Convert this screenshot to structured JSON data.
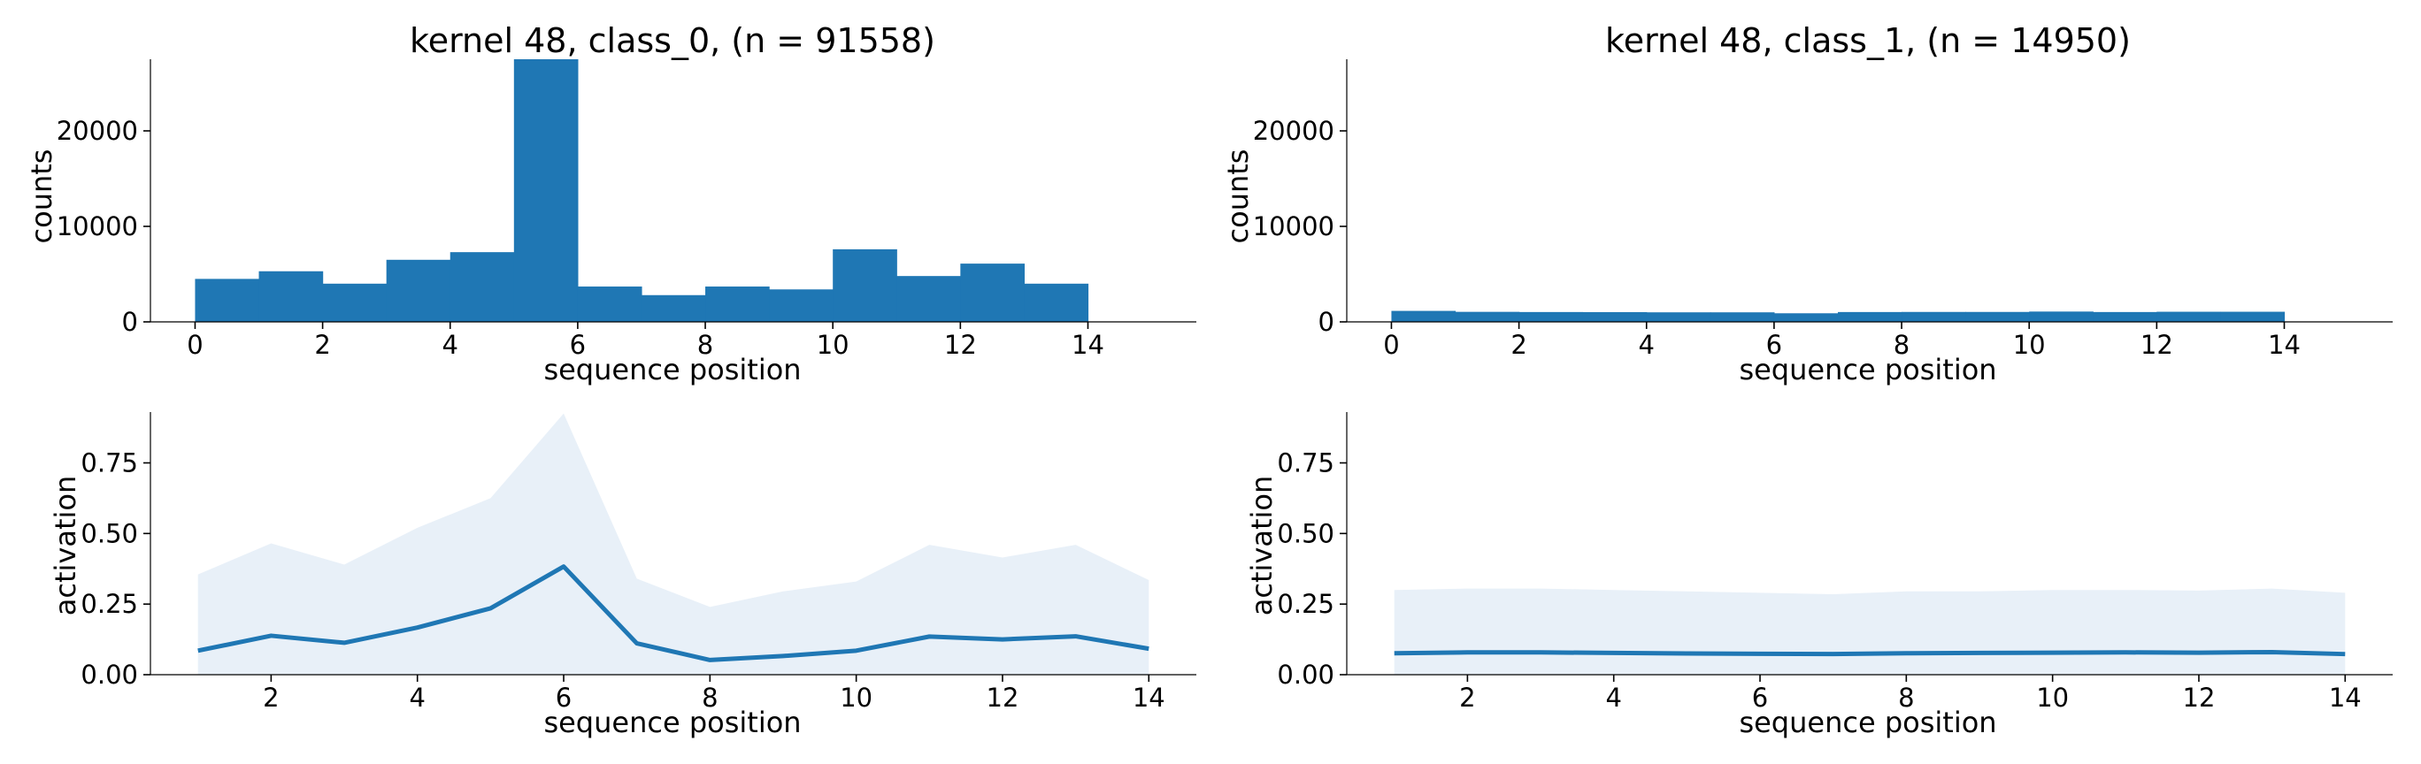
{
  "chart_data": [
    {
      "type": "bar",
      "title": "kernel 48, class_0, (n = 91558)",
      "xlabel": "sequence position",
      "ylabel": "counts",
      "xlim": [
        -0.7,
        15.7
      ],
      "ylim": [
        0,
        27500
      ],
      "xticks": [
        "0",
        "2",
        "4",
        "6",
        "8",
        "10",
        "12",
        "14"
      ],
      "yticks": [
        "0",
        "10000",
        "20000"
      ],
      "bin_edges": [
        0,
        1,
        2,
        3,
        4,
        5,
        6,
        7,
        8,
        9,
        10,
        11,
        12,
        13,
        14
      ],
      "values": [
        4500,
        5300,
        4000,
        6500,
        7300,
        27500,
        3700,
        2800,
        3700,
        3400,
        7600,
        4800,
        6100,
        4000
      ],
      "color": "#1f77b4",
      "grid": false
    },
    {
      "type": "bar",
      "title": "kernel 48, class_1, (n = 14950)",
      "xlabel": "sequence position",
      "ylabel": "counts",
      "xlim": [
        -0.7,
        15.7
      ],
      "ylim": [
        0,
        27500
      ],
      "xticks": [
        "0",
        "2",
        "4",
        "6",
        "8",
        "10",
        "12",
        "14"
      ],
      "yticks": [
        "0",
        "10000",
        "20000"
      ],
      "bin_edges": [
        0,
        1,
        2,
        3,
        4,
        5,
        6,
        7,
        8,
        9,
        10,
        11,
        12,
        13,
        14
      ],
      "values": [
        1150,
        1050,
        1030,
        1020,
        1000,
        1000,
        900,
        1030,
        1040,
        1040,
        1080,
        1030,
        1060,
        1060
      ],
      "color": "#1f77b4",
      "grid": false
    },
    {
      "type": "line",
      "title": "",
      "xlabel": "sequence position",
      "ylabel": "activation",
      "xlim": [
        0.35,
        14.65
      ],
      "ylim": [
        0,
        0.93
      ],
      "xticks": [
        "2",
        "4",
        "6",
        "8",
        "10",
        "12",
        "14"
      ],
      "yticks": [
        "0.00",
        "0.25",
        "0.50",
        "0.75"
      ],
      "x": [
        1,
        2,
        3,
        4,
        5,
        6,
        7,
        8,
        9,
        10,
        11,
        12,
        13,
        14
      ],
      "mean": [
        0.085,
        0.138,
        0.113,
        0.167,
        0.235,
        0.383,
        0.111,
        0.052,
        0.066,
        0.085,
        0.135,
        0.125,
        0.136,
        0.092
      ],
      "band_upper": [
        0.355,
        0.465,
        0.39,
        0.52,
        0.625,
        0.925,
        0.34,
        0.24,
        0.295,
        0.33,
        0.46,
        0.415,
        0.46,
        0.335
      ],
      "band_lower": [
        0,
        0,
        0,
        0,
        0,
        0,
        0,
        0,
        0,
        0,
        0,
        0,
        0,
        0
      ],
      "color": "#1f77b4",
      "band_color": "#e8f0f8",
      "grid": false
    },
    {
      "type": "line",
      "title": "",
      "xlabel": "sequence position",
      "ylabel": "activation",
      "xlim": [
        0.35,
        14.65
      ],
      "ylim": [
        0,
        0.93
      ],
      "xticks": [
        "2",
        "4",
        "6",
        "8",
        "10",
        "12",
        "14"
      ],
      "yticks": [
        "0.00",
        "0.25",
        "0.50",
        "0.75"
      ],
      "x": [
        1,
        2,
        3,
        4,
        5,
        6,
        7,
        8,
        9,
        10,
        11,
        12,
        13,
        14
      ],
      "mean": [
        0.076,
        0.079,
        0.079,
        0.077,
        0.075,
        0.074,
        0.073,
        0.076,
        0.077,
        0.078,
        0.079,
        0.078,
        0.08,
        0.073
      ],
      "band_upper": [
        0.3,
        0.305,
        0.305,
        0.3,
        0.295,
        0.29,
        0.285,
        0.295,
        0.295,
        0.3,
        0.3,
        0.298,
        0.305,
        0.29
      ],
      "band_lower": [
        0,
        0,
        0,
        0,
        0,
        0,
        0,
        0,
        0,
        0,
        0,
        0,
        0,
        0
      ],
      "color": "#1f77b4",
      "band_color": "#e8f0f8",
      "grid": false
    }
  ]
}
